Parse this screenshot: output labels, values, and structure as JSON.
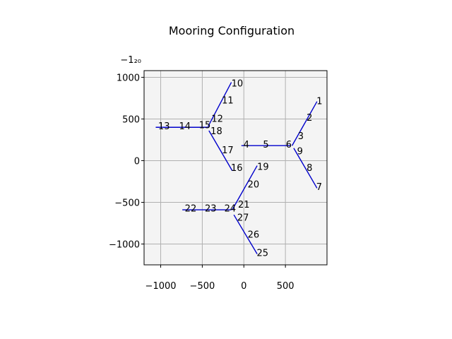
{
  "chart_data": {
    "type": "line",
    "title": "Mooring Configuration",
    "xlabel": "",
    "ylabel": "",
    "xlim": [
      -1200,
      1000
    ],
    "ylim": [
      -1250,
      1080
    ],
    "grid": true,
    "background_color": "#f4f4f4",
    "line_color": "#0000cc",
    "x_ticks": [
      -1000,
      -500,
      0,
      500
    ],
    "x_tick_labels": [
      "−1000",
      "−500",
      "0",
      "500"
    ],
    "y_ticks": [
      1000,
      500,
      0,
      -500,
      -1000
    ],
    "y_tick_labels": [
      "1000",
      "500",
      "0",
      "−500",
      "−1000"
    ],
    "corner_tick_label": "−1₂₀",
    "series": [
      {
        "x": [
          580,
          880
        ],
        "y": [
          180,
          710
        ]
      },
      {
        "x": [
          600,
          880
        ],
        "y": [
          150,
          -330
        ]
      },
      {
        "x": [
          -30,
          560
        ],
        "y": [
          180,
          180
        ]
      },
      {
        "x": [
          -430,
          -150
        ],
        "y": [
          410,
          940
        ]
      },
      {
        "x": [
          -420,
          -140
        ],
        "y": [
          360,
          -120
        ]
      },
      {
        "x": [
          -1060,
          -420
        ],
        "y": [
          400,
          400
        ]
      },
      {
        "x": [
          -140,
          160
        ],
        "y": [
          -590,
          -60
        ]
      },
      {
        "x": [
          -120,
          160
        ],
        "y": [
          -650,
          -1120
        ]
      },
      {
        "x": [
          -740,
          -150
        ],
        "y": [
          -590,
          -590
        ]
      }
    ],
    "labels": [
      {
        "text": "1",
        "x": 875,
        "y": 720
      },
      {
        "text": "2",
        "x": 755,
        "y": 520
      },
      {
        "text": "3",
        "x": 650,
        "y": 300
      },
      {
        "text": "4",
        "x": -5,
        "y": 200
      },
      {
        "text": "5",
        "x": 230,
        "y": 200
      },
      {
        "text": "6",
        "x": 505,
        "y": 200
      },
      {
        "text": "7",
        "x": 870,
        "y": -310
      },
      {
        "text": "8",
        "x": 755,
        "y": -80
      },
      {
        "text": "9",
        "x": 640,
        "y": 120
      },
      {
        "text": "10",
        "x": -150,
        "y": 930
      },
      {
        "text": "11",
        "x": -265,
        "y": 730
      },
      {
        "text": "12",
        "x": -390,
        "y": 510
      },
      {
        "text": "13",
        "x": -1030,
        "y": 420
      },
      {
        "text": "14",
        "x": -780,
        "y": 420
      },
      {
        "text": "15",
        "x": -540,
        "y": 430
      },
      {
        "text": "16",
        "x": -155,
        "y": -80
      },
      {
        "text": "17",
        "x": -265,
        "y": 130
      },
      {
        "text": "18",
        "x": -400,
        "y": 360
      },
      {
        "text": "19",
        "x": 160,
        "y": -70
      },
      {
        "text": "20",
        "x": 45,
        "y": -280
      },
      {
        "text": "21",
        "x": -70,
        "y": -520
      },
      {
        "text": "22",
        "x": -710,
        "y": -570
      },
      {
        "text": "23",
        "x": -470,
        "y": -570
      },
      {
        "text": "24",
        "x": -235,
        "y": -570
      },
      {
        "text": "25",
        "x": 155,
        "y": -1100
      },
      {
        "text": "26",
        "x": 45,
        "y": -880
      },
      {
        "text": "27",
        "x": -80,
        "y": -680
      }
    ]
  }
}
